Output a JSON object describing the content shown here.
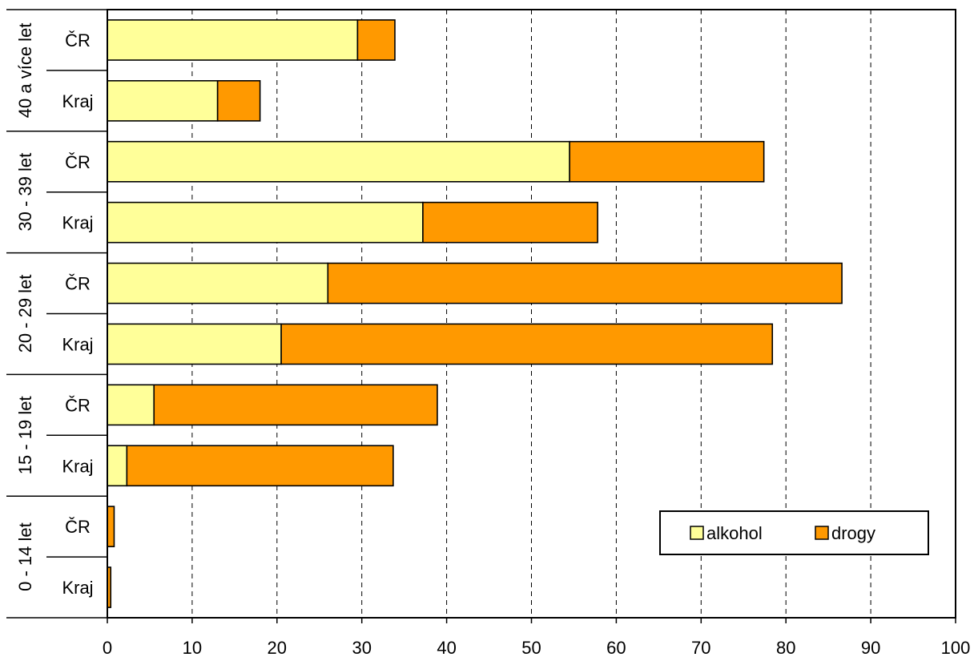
{
  "chart_data": {
    "type": "bar",
    "orientation": "horizontal",
    "stacked": true,
    "groups": [
      "40 a více let",
      "30 - 39 let",
      "20 - 29 let",
      "15 - 19 let",
      "0 - 14 let"
    ],
    "subcategories": [
      "ČR",
      "Kraj"
    ],
    "series": [
      {
        "name": "alkohol",
        "color": "#FFFF99",
        "values": [
          29.5,
          13.0,
          54.5,
          37.2,
          26.0,
          20.5,
          5.5,
          2.3,
          0.0,
          0.0
        ]
      },
      {
        "name": "drogy",
        "color": "#FF9900",
        "values": [
          4.4,
          5.0,
          22.9,
          20.6,
          60.6,
          57.9,
          33.4,
          31.4,
          0.8,
          0.4
        ]
      }
    ],
    "xlim": [
      0,
      100
    ],
    "xticks": [
      "0",
      "10",
      "20",
      "30",
      "40",
      "50",
      "60",
      "70",
      "80",
      "90",
      "100"
    ],
    "grid": "vertical dashed",
    "legend_position": "bottom-right"
  }
}
